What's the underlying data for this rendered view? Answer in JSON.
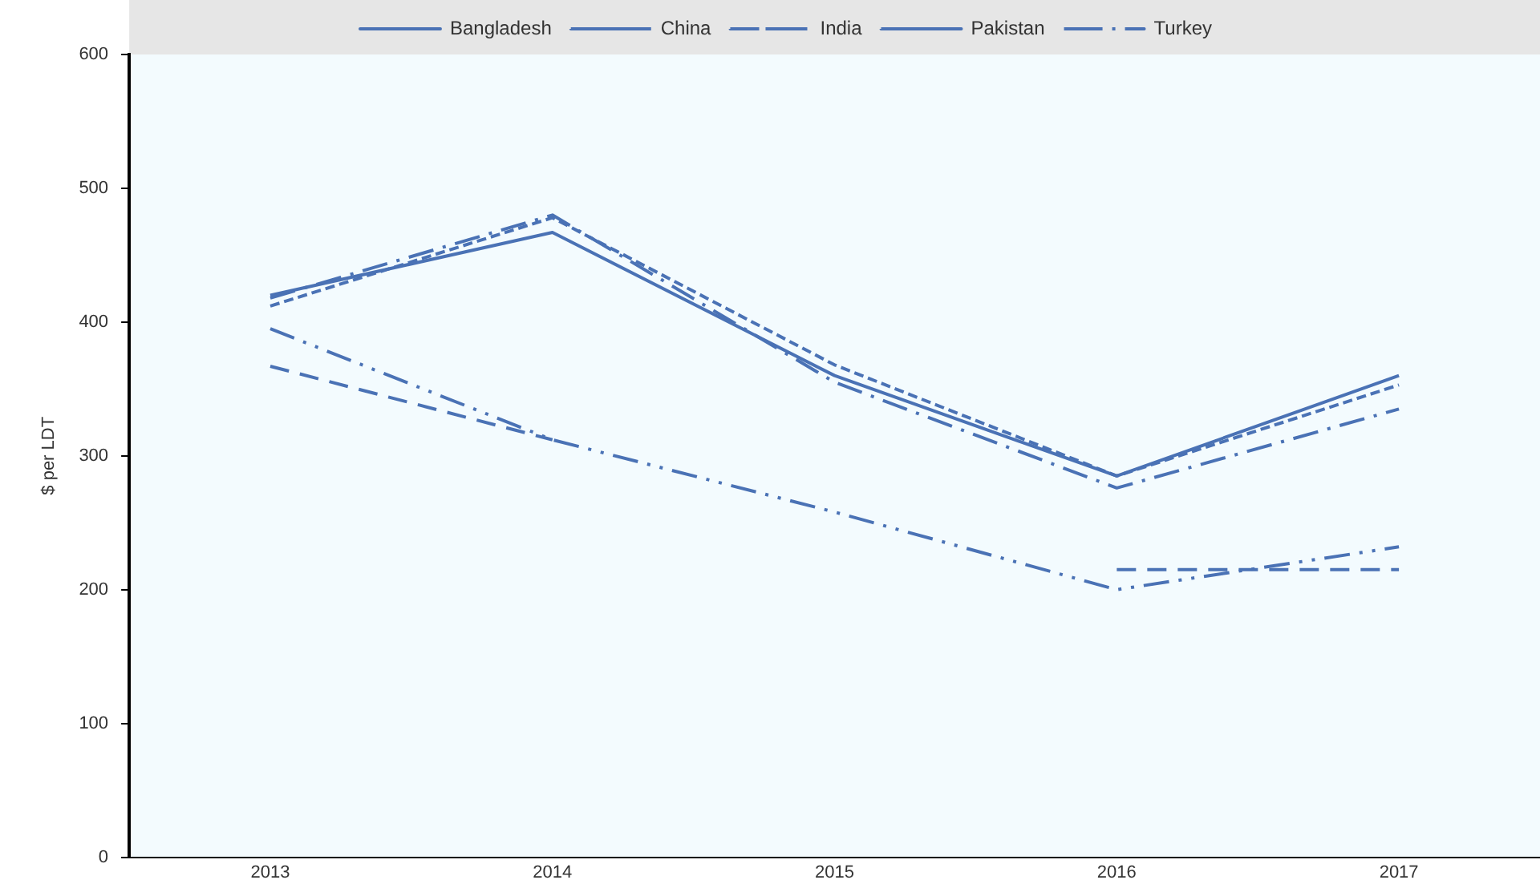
{
  "chart_data": {
    "type": "line",
    "ylabel": "$ per LDT",
    "categories": [
      "2013",
      "2014",
      "2015",
      "2016",
      "2017"
    ],
    "series": [
      {
        "name": "Bangladesh",
        "color": "#4a72b5",
        "line_style": "solid",
        "values": [
          420,
          467,
          360,
          285,
          360
        ]
      },
      {
        "name": "China",
        "color": "#4a72b5",
        "line_style": "dashed",
        "values": [
          367,
          312,
          null,
          215,
          215
        ]
      },
      {
        "name": "India",
        "color": "#4a72b5",
        "line_style": "dashdot",
        "values": [
          418,
          480,
          355,
          276,
          335
        ]
      },
      {
        "name": "Pakistan",
        "color": "#4a72b5",
        "line_style": "shortdash",
        "values": [
          412,
          478,
          368,
          285,
          353
        ]
      },
      {
        "name": "Turkey",
        "color": "#4a72b5",
        "line_style": "dashdotdot",
        "values": [
          395,
          312,
          258,
          200,
          232
        ]
      }
    ],
    "ylim": [
      0,
      600
    ],
    "yticks": [
      0,
      100,
      200,
      300,
      400,
      500,
      600
    ],
    "grid": false,
    "legend": "top",
    "marker": "none"
  }
}
